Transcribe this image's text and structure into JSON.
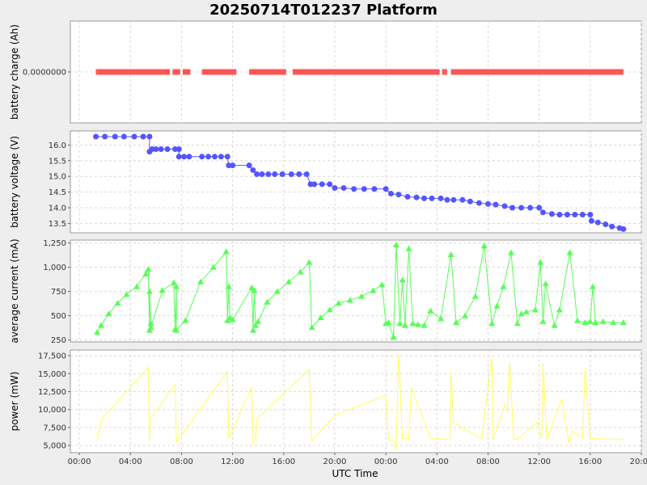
{
  "title": "20250714T012237 Platform",
  "x_axis": {
    "label": "UTC Time",
    "ticks": [
      "00:00",
      "04:00",
      "08:00",
      "12:00",
      "16:00",
      "20:00",
      "00:00",
      "04:00",
      "08:00",
      "12:00",
      "16:00",
      "20:00"
    ],
    "tick_hours": [
      0,
      4,
      8,
      12,
      16,
      20,
      24,
      28,
      32,
      36,
      40,
      44
    ],
    "range_hours": [
      -0.7,
      44.0
    ]
  },
  "colors": {
    "charge": "#ff5555",
    "voltage": "#5555ff",
    "current": "#55ff55",
    "power": "#ffff55"
  },
  "chart_data": [
    {
      "type": "scatter",
      "title": "",
      "ylabel": "battery charge (Ah)",
      "ylim": [
        -1,
        1
      ],
      "y_ticks": [
        0
      ],
      "y_tick_labels": [
        "0.0000000"
      ],
      "marker": "square",
      "segments": [
        [
          1.3,
          7.1
        ],
        [
          7.3,
          7.9
        ],
        [
          8.1,
          8.7
        ],
        [
          9.6,
          12.3
        ],
        [
          13.3,
          16.2
        ],
        [
          16.7,
          28.2
        ],
        [
          28.4,
          28.8
        ],
        [
          29.1,
          42.6
        ]
      ]
    },
    {
      "type": "line",
      "title": "",
      "ylabel": "battery voltage (V)",
      "ylim": [
        13.2,
        16.45
      ],
      "y_ticks": [
        13.5,
        14.0,
        14.5,
        15.0,
        15.5,
        16.0
      ],
      "y_tick_labels": [
        "13.5",
        "14.0",
        "14.5",
        "15.0",
        "15.5",
        "16.0"
      ],
      "marker": "circle",
      "x": [
        1.3,
        2.0,
        2.8,
        3.5,
        4.3,
        5.0,
        5.5,
        5.5,
        5.7,
        6.0,
        6.4,
        6.9,
        7.5,
        7.8,
        7.8,
        8.2,
        8.6,
        9.6,
        10.1,
        10.6,
        11.1,
        11.6,
        11.7,
        12.0,
        13.3,
        13.6,
        13.9,
        14.3,
        14.8,
        15.3,
        15.9,
        16.6,
        17.2,
        17.8,
        18.1,
        18.4,
        19.0,
        19.6,
        20.0,
        20.7,
        21.5,
        22.3,
        23.1,
        24.0,
        24.4,
        25.0,
        25.7,
        26.4,
        27.0,
        27.6,
        28.3,
        28.8,
        29.3,
        30.0,
        30.6,
        31.3,
        32.0,
        32.6,
        33.3,
        33.9,
        34.6,
        35.3,
        36.0,
        36.3,
        37.0,
        37.6,
        38.2,
        38.8,
        39.4,
        40.0,
        40.1,
        40.6,
        41.2,
        41.7,
        42.3,
        42.6
      ],
      "y": [
        16.27,
        16.27,
        16.27,
        16.27,
        16.27,
        16.27,
        16.27,
        15.79,
        15.87,
        15.87,
        15.87,
        15.87,
        15.87,
        15.87,
        15.63,
        15.63,
        15.63,
        15.63,
        15.63,
        15.63,
        15.63,
        15.63,
        15.35,
        15.35,
        15.35,
        15.2,
        15.07,
        15.07,
        15.07,
        15.07,
        15.07,
        15.07,
        15.07,
        15.07,
        14.75,
        14.75,
        14.75,
        14.75,
        14.63,
        14.63,
        14.6,
        14.6,
        14.6,
        14.6,
        14.45,
        14.42,
        14.35,
        14.33,
        14.3,
        14.3,
        14.3,
        14.25,
        14.25,
        14.25,
        14.2,
        14.15,
        14.12,
        14.1,
        14.05,
        14.0,
        14.0,
        14.0,
        14.0,
        13.85,
        13.8,
        13.78,
        13.78,
        13.78,
        13.78,
        13.78,
        13.58,
        13.53,
        13.47,
        13.4,
        13.35,
        13.32
      ]
    },
    {
      "type": "line",
      "title": "",
      "ylabel": "average current (mA)",
      "ylim": [
        230,
        1280
      ],
      "y_ticks": [
        250,
        500,
        750,
        1000,
        1250
      ],
      "y_tick_labels": [
        "250",
        "500",
        "750",
        "1,000",
        "1,250"
      ],
      "marker": "triangle",
      "x": [
        1.4,
        1.7,
        2.3,
        3.0,
        3.7,
        4.5,
        5.2,
        5.4,
        5.5,
        5.5,
        5.6,
        5.6,
        6.5,
        7.4,
        7.5,
        7.6,
        7.6,
        8.3,
        9.5,
        10.5,
        11.5,
        11.6,
        11.7,
        11.8,
        12.0,
        13.5,
        13.6,
        13.7,
        13.8,
        14.0,
        14.7,
        15.5,
        16.4,
        17.3,
        18.0,
        18.2,
        18.9,
        19.6,
        20.3,
        21.2,
        22.1,
        23.0,
        23.7,
        24.0,
        24.2,
        24.6,
        24.8,
        25.1,
        25.3,
        25.5,
        25.8,
        26.1,
        26.5,
        27.0,
        27.5,
        28.3,
        29.1,
        29.5,
        30.2,
        31.0,
        31.7,
        32.3,
        32.7,
        33.2,
        33.8,
        34.3,
        34.6,
        35.0,
        35.7,
        36.1,
        36.3,
        36.5,
        37.2,
        37.6,
        38.4,
        39.0,
        39.6,
        40.0,
        40.2,
        40.4,
        41.0,
        41.8,
        42.6
      ],
      "y": [
        330,
        400,
        520,
        630,
        720,
        800,
        930,
        980,
        350,
        750,
        420,
        380,
        760,
        840,
        360,
        800,
        350,
        450,
        850,
        1000,
        1160,
        450,
        800,
        480,
        460,
        790,
        350,
        760,
        400,
        440,
        640,
        750,
        850,
        950,
        1050,
        380,
        480,
        560,
        630,
        660,
        700,
        760,
        820,
        420,
        430,
        280,
        1230,
        420,
        870,
        400,
        1190,
        420,
        410,
        400,
        550,
        470,
        1130,
        430,
        500,
        700,
        1220,
        420,
        600,
        800,
        1150,
        420,
        520,
        540,
        560,
        1050,
        440,
        830,
        400,
        560,
        1150,
        450,
        430,
        440,
        800,
        430,
        440,
        430,
        430
      ]
    },
    {
      "type": "line",
      "title": "",
      "ylabel": "power (mW)",
      "ylim": [
        4000,
        18300
      ],
      "y_ticks": [
        5000,
        7500,
        10000,
        12500,
        15000,
        17500
      ],
      "y_tick_labels": [
        "5,000",
        "7,500",
        "10,000",
        "12,500",
        "15,000",
        "17,500"
      ],
      "marker": "none",
      "x": [
        1.4,
        1.7,
        5.4,
        5.5,
        5.6,
        7.5,
        7.6,
        11.6,
        11.7,
        13.5,
        13.6,
        13.8,
        13.9,
        18.0,
        18.2,
        20.0,
        24.0,
        24.2,
        24.6,
        24.8,
        25.0,
        25.3,
        25.8,
        26.0,
        27.5,
        28.3,
        29.0,
        29.1,
        29.3,
        31.5,
        32.3,
        32.4,
        33.3,
        33.5,
        33.7,
        34.0,
        34.4,
        35.9,
        36.2,
        36.3,
        36.6,
        37.8,
        38.3,
        38.6,
        39.4,
        39.6,
        40.0,
        40.1,
        40.3,
        40.6,
        41.0,
        42.0,
        42.6
      ],
      "y": [
        5500,
        8500,
        15900,
        5600,
        8800,
        13400,
        5500,
        15300,
        6000,
        13200,
        5300,
        5400,
        8700,
        15600,
        5600,
        9200,
        12000,
        5800,
        5600,
        4300,
        17700,
        5900,
        6000,
        13100,
        6000,
        5900,
        5800,
        15200,
        8200,
        5900,
        17300,
        5800,
        10700,
        9700,
        16700,
        5800,
        6000,
        8300,
        5800,
        16500,
        5800,
        11500,
        5400,
        7000,
        6000,
        15800,
        5800,
        6000,
        6000,
        5900,
        5900,
        5900,
        5800
      ]
    }
  ]
}
